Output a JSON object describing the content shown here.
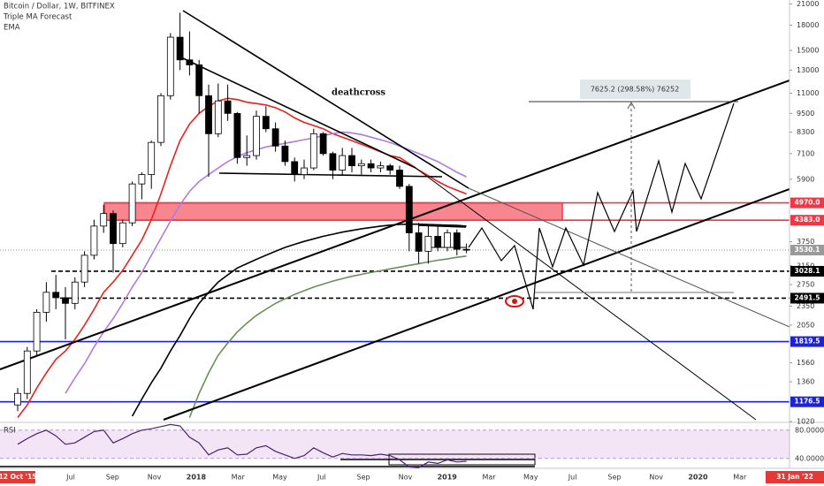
{
  "header": {
    "symbol": "Bitcoin / Dollar, 1W, BITFINEX",
    "indicator": "Triple MA Forecast",
    "ma_type": "EMA"
  },
  "chart_data": {
    "type": "candlestick",
    "log": true,
    "ylim": [
      1020,
      21600
    ],
    "yticks": [
      21000,
      18000,
      15000,
      13000,
      11000,
      9500,
      8300,
      7100,
      5900,
      3750,
      3150,
      2750,
      2350,
      2050,
      1560,
      1360,
      1020
    ],
    "categories": [
      null,
      null,
      null,
      null,
      null,
      null,
      null,
      null,
      null,
      null,
      null,
      null,
      null,
      null,
      null,
      null,
      null,
      null,
      null,
      null,
      null,
      null,
      null,
      null,
      null,
      null,
      null,
      null,
      null,
      null,
      null,
      null,
      null,
      null,
      null,
      null,
      null,
      null,
      null,
      null,
      null,
      null,
      null,
      null,
      null,
      null,
      null,
      null
    ],
    "open": [
      1150,
      1250,
      1700,
      2250,
      2600,
      2500,
      2400,
      2800,
      3400,
      4200,
      4600,
      3700,
      4300,
      5700,
      6100,
      7700,
      10800,
      16500,
      14000,
      13500,
      10800,
      8200,
      10400,
      9500,
      6900,
      7000,
      9300,
      8500,
      7500,
      6700,
      6100,
      6400,
      8200,
      7100,
      6300,
      7000,
      6500,
      6600,
      6400,
      6500,
      6300,
      5600,
      4000,
      3500,
      3900,
      3600,
      4000,
      3550
    ],
    "high": [
      1300,
      1750,
      2300,
      2800,
      2950,
      2700,
      2900,
      3500,
      4400,
      4900,
      4700,
      4400,
      5800,
      6200,
      7800,
      11000,
      17000,
      19700,
      17200,
      14000,
      11700,
      11800,
      11700,
      9600,
      8100,
      9700,
      10000,
      8900,
      7800,
      6900,
      6800,
      8500,
      8300,
      7200,
      7400,
      7400,
      6800,
      6800,
      6700,
      6600,
      6500,
      5700,
      4300,
      4200,
      4200,
      4100,
      4100,
      3700
    ],
    "low": [
      1100,
      1200,
      1650,
      2100,
      2300,
      1850,
      2300,
      2700,
      3300,
      4000,
      3000,
      3600,
      4200,
      5100,
      5500,
      7500,
      10500,
      13000,
      12500,
      9500,
      6000,
      8000,
      9000,
      6600,
      6500,
      6800,
      8300,
      7200,
      6500,
      5800,
      5900,
      6300,
      7000,
      5900,
      6100,
      6200,
      6100,
      6200,
      6200,
      6100,
      5500,
      3500,
      3200,
      3200,
      3500,
      3500,
      3400,
      3450
    ],
    "close": [
      1250,
      1700,
      2250,
      2600,
      2500,
      2400,
      2800,
      3400,
      4200,
      4600,
      3700,
      4300,
      5700,
      6100,
      7700,
      10800,
      16500,
      14000,
      13500,
      10800,
      8200,
      10400,
      9500,
      6900,
      7000,
      9300,
      8500,
      7500,
      6700,
      6100,
      6400,
      8200,
      7100,
      6300,
      7000,
      6500,
      6600,
      6400,
      6500,
      6300,
      5600,
      4000,
      3500,
      3900,
      3600,
      4000,
      3550,
      3530
    ],
    "up_color": "#ffffff",
    "down_color": "#000000",
    "moving_averages": [
      {
        "color": "#e8221b",
        "values": [
          1050,
          1150,
          1300,
          1450,
          1600,
          1700,
          1850,
          2050,
          2300,
          2600,
          2800,
          3050,
          3400,
          3800,
          4400,
          5300,
          6500,
          7800,
          8800,
          9500,
          10000,
          10400,
          10600,
          10500,
          10300,
          10200,
          10100,
          9900,
          9600,
          9200,
          8900,
          8700,
          8500,
          8200,
          8000,
          7800,
          7600,
          7400,
          7200,
          7000,
          6900,
          6600,
          6300,
          6050,
          5800,
          5600,
          5450,
          5300
        ]
      },
      {
        "color": "#b07be0",
        "values": [
          null,
          null,
          null,
          null,
          null,
          1250,
          1400,
          1550,
          1750,
          1950,
          2150,
          2400,
          2700,
          3000,
          3400,
          3850,
          4350,
          4900,
          5400,
          5800,
          6100,
          6400,
          6700,
          6950,
          7150,
          7300,
          7450,
          7550,
          7650,
          7750,
          7850,
          7950,
          8100,
          8200,
          8300,
          8250,
          8150,
          8000,
          7850,
          7700,
          7500,
          7300,
          7100,
          6900,
          6700,
          6450,
          6200,
          6000
        ]
      },
      {
        "color": "#000000",
        "values": [
          null,
          null,
          null,
          null,
          null,
          null,
          null,
          null,
          null,
          null,
          null,
          null,
          1060,
          1200,
          1350,
          1500,
          1700,
          1900,
          2150,
          2400,
          2600,
          2800,
          2950,
          3100,
          3200,
          3300,
          3400,
          3500,
          3600,
          3680,
          3760,
          3830,
          3900,
          3960,
          4020,
          4070,
          4120,
          4160,
          4200,
          4230,
          4250,
          4260,
          4260,
          4250,
          4240,
          4230,
          4220,
          4200
        ]
      },
      {
        "color": "#6b8e5a",
        "values": [
          null,
          null,
          null,
          null,
          null,
          null,
          null,
          null,
          null,
          null,
          null,
          null,
          null,
          null,
          null,
          null,
          null,
          null,
          1050,
          1250,
          1450,
          1650,
          1800,
          1950,
          2080,
          2200,
          2300,
          2400,
          2480,
          2560,
          2630,
          2700,
          2760,
          2820,
          2870,
          2920,
          2960,
          3000,
          3040,
          3080,
          3120,
          3160,
          3200,
          3240,
          3280,
          3310,
          3350,
          3380
        ]
      }
    ],
    "levels": [
      {
        "value": 4970,
        "label": "4970.0",
        "color": "#f23645",
        "style": "solid"
      },
      {
        "value": 4383,
        "label": "4383.0",
        "color": "#f23645",
        "style": "solid"
      },
      {
        "value": 3530.1,
        "label": "3530.1",
        "color": "#9a9a9a",
        "style": "dotted"
      },
      {
        "value": 3028.1,
        "label": "3028.1",
        "color": "#000000",
        "style": "dashed"
      },
      {
        "value": 2491.5,
        "label": "2491.5",
        "color": "#000000",
        "style": "dashed"
      },
      {
        "value": 1819.5,
        "label": "1819.5",
        "color": "#1e22d6",
        "style": "solid"
      },
      {
        "value": 1176.5,
        "label": "1176.5",
        "color": "#1e22d6",
        "style": "solid"
      }
    ],
    "annotations": {
      "deathcross": "deathcross",
      "measure": "7625.2 (298.58%) 76252"
    },
    "time_labels": [
      "Jul",
      "Sep",
      "Nov",
      "2018",
      "Mar",
      "May",
      "Jul",
      "Sep",
      "Nov",
      "2019",
      "Mar",
      "May",
      "Jul",
      "Sep",
      "Nov",
      "2020",
      "Mar"
    ],
    "rsi": {
      "label": "RSI",
      "color": "#4a1f74",
      "ylim": [
        26,
        91
      ],
      "yticks": [
        {
          "value": 80,
          "label": "80.0000"
        },
        {
          "value": 40,
          "label": "40.0000"
        }
      ],
      "values": [
        60,
        68,
        75,
        80,
        72,
        60,
        62,
        70,
        78,
        80,
        62,
        68,
        75,
        80,
        82,
        85,
        88,
        86,
        70,
        62,
        45,
        52,
        55,
        45,
        46,
        55,
        58,
        50,
        45,
        40,
        44,
        55,
        48,
        42,
        47,
        45,
        45,
        44,
        46,
        44,
        38,
        28,
        27,
        35,
        33,
        38,
        35,
        36
      ]
    },
    "range_start": "12 Oct '15",
    "range_end": "31 Jan '22"
  }
}
